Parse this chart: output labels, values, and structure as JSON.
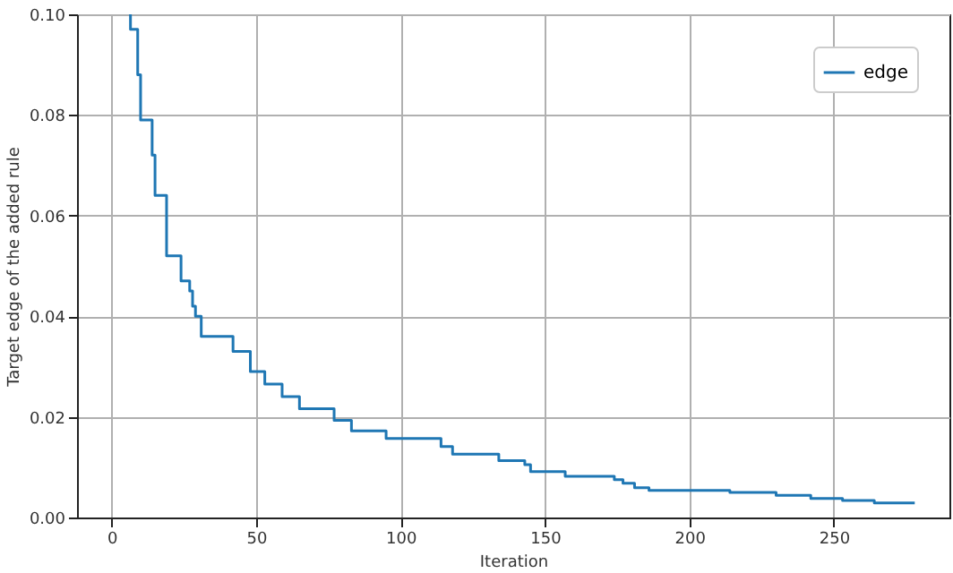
{
  "chart_data": {
    "type": "step",
    "xlabel": "Iteration",
    "ylabel": "Target edge of the added rule",
    "xlim": [
      -12,
      290
    ],
    "ylim": [
      0,
      0.1
    ],
    "xticks": [
      0,
      50,
      100,
      150,
      200,
      250
    ],
    "yticks": [
      {
        "value": 0,
        "label": "0.00"
      },
      {
        "value": 0.02,
        "label": "0.02"
      },
      {
        "value": 0.04,
        "label": "0.04"
      },
      {
        "value": 0.06,
        "label": "0.06"
      },
      {
        "value": 0.08,
        "label": "0.08"
      },
      {
        "value": 0.1,
        "label": "0.10"
      }
    ],
    "grid": true,
    "legend": "top right",
    "marker": "none",
    "line_style": "solid",
    "series": [
      {
        "name": "edge",
        "color": "#1f77b4",
        "x": [
          6,
          6.5,
          9,
          10,
          14,
          15,
          19,
          24,
          27,
          28,
          29,
          31,
          42,
          48,
          53,
          59,
          65,
          77,
          83,
          95,
          114,
          118,
          134,
          143,
          145,
          157,
          174,
          177,
          181,
          186,
          214,
          230,
          242,
          253,
          264,
          278
        ],
        "values": [
          0.1,
          0.097,
          0.088,
          0.079,
          0.072,
          0.064,
          0.052,
          0.047,
          0.045,
          0.042,
          0.04,
          0.036,
          0.033,
          0.029,
          0.0265,
          0.024,
          0.0216,
          0.0193,
          0.0172,
          0.0157,
          0.0141,
          0.0126,
          0.0113,
          0.0105,
          0.0091,
          0.0082,
          0.0075,
          0.0068,
          0.0059,
          0.0054,
          0.005,
          0.0044,
          0.0038,
          0.0034,
          0.0029,
          0.0029
        ]
      }
    ]
  }
}
